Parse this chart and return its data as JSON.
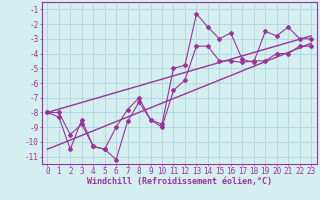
{
  "xlabel": "Windchill (Refroidissement éolien,°C)",
  "x_values": [
    0,
    1,
    2,
    3,
    4,
    5,
    6,
    7,
    8,
    9,
    10,
    11,
    12,
    13,
    14,
    15,
    16,
    17,
    18,
    19,
    20,
    21,
    22,
    23
  ],
  "line1_y": [
    -8.0,
    -8.3,
    -10.5,
    -8.5,
    -10.3,
    -10.5,
    -11.2,
    -8.6,
    -7.3,
    -8.5,
    -8.8,
    -5.0,
    -4.8,
    -1.3,
    -2.2,
    -3.0,
    -2.6,
    -4.4,
    -4.6,
    -2.5,
    -2.8,
    -2.2,
    -3.0,
    -3.0
  ],
  "line2_y": [
    -8.0,
    -8.0,
    -9.5,
    -8.8,
    -10.3,
    -10.5,
    -9.0,
    -7.8,
    -7.0,
    -8.5,
    -9.0,
    -6.5,
    -5.8,
    -3.5,
    -3.5,
    -4.5,
    -4.5,
    -4.6,
    -4.5,
    -4.5,
    -4.0,
    -4.0,
    -3.5,
    -3.5
  ],
  "trend1_x": [
    0,
    23
  ],
  "trend1_y": [
    -8.0,
    -2.8
  ],
  "trend2_x": [
    0,
    23
  ],
  "trend2_y": [
    -10.5,
    -3.3
  ],
  "line_color": "#993399",
  "bg_color": "#d5eef0",
  "grid_color": "#a8d0d8",
  "ylim": [
    -11.5,
    -0.5
  ],
  "xlim": [
    -0.5,
    23.5
  ],
  "yticks": [
    -1,
    -2,
    -3,
    -4,
    -5,
    -6,
    -7,
    -8,
    -9,
    -10,
    -11
  ],
  "xticks": [
    0,
    1,
    2,
    3,
    4,
    5,
    6,
    7,
    8,
    9,
    10,
    11,
    12,
    13,
    14,
    15,
    16,
    17,
    18,
    19,
    20,
    21,
    22,
    23
  ]
}
